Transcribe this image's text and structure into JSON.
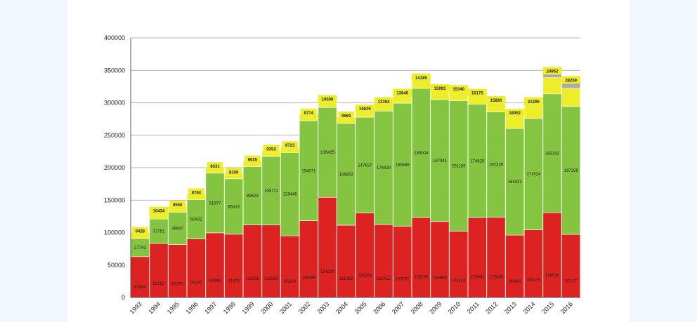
{
  "chart_data": {
    "type": "bar",
    "stacked": true,
    "title": "",
    "xlabel": "",
    "ylabel": "",
    "ylim": [
      0,
      400000
    ],
    "yticks": [
      0,
      50000,
      100000,
      150000,
      200000,
      250000,
      300000,
      350000,
      400000
    ],
    "ytick_labels": [
      "0",
      "50000",
      "100000",
      "150000",
      "200000",
      "250000",
      "300000",
      "350000",
      "400000"
    ],
    "grid": true,
    "legend": "none",
    "categories": [
      "1993",
      "1994",
      "1995",
      "1996",
      "1997",
      "1998",
      "1999",
      "2000",
      "2001",
      "2002",
      "2003",
      "2004",
      "2005",
      "2006",
      "2007",
      "2008",
      "2009",
      "2010",
      "2011",
      "2012",
      "2013",
      "2014",
      "2015",
      "2016"
    ],
    "colors": {
      "red": "#dd2222",
      "green": "#84c441",
      "yellow": "#eded2a",
      "gray": "#aaaaaa"
    },
    "series": [
      {
        "values": [
          62884,
          83052,
          81570,
          90142,
          99588,
          97475,
          111958,
          111650,
          95010,
          118289,
          154299,
          111362,
          130155,
          112455,
          109702,
          123196,
          116969,
          102162,
          123001,
          123486,
          96060,
          104275,
          130570,
          97107
        ],
        "labels": [
          "62884",
          "83052",
          "81570",
          "90142",
          "99588",
          "97475",
          "111958",
          "111650",
          "95010",
          "118289",
          "154299",
          "111362",
          "130155",
          "112455",
          "109702",
          "123196",
          "116969",
          "102162",
          "123001",
          "123486",
          "96060",
          "104275",
          "130570",
          "97107"
        ]
      },
      {
        "values": [
          27743,
          37751,
          49547,
          60492,
          91977,
          85413,
          89623,
          105711,
          128448,
          154071,
          138435,
          156863,
          147637,
          174819,
          189696,
          199004,
          187941,
          201183,
          174625,
          162339,
          164422,
          171524,
          183162,
          197159
        ],
        "labels": [
          "27743",
          "37751",
          "49547",
          "60492",
          "91977",
          "85413",
          "89623",
          "105711",
          "128448",
          "154071",
          "138435",
          "156863",
          "147637",
          "174819",
          "189696",
          "199004",
          "187941",
          "201183",
          "174625",
          "162339",
          "164422",
          "171524",
          "183162",
          "197159"
        ]
      },
      {
        "values": [
          9428,
          10434,
          9550,
          8784,
          8331,
          8106,
          8625,
          9353,
          8723,
          9774,
          10509,
          9669,
          10629,
          12394,
          13646,
          14185,
          15093,
          15340,
          15175,
          15826,
          18952,
          21399,
          24952,
          28259
        ],
        "labels": [
          "9428",
          "10434",
          "9550",
          "8784",
          "8331",
          "8106",
          "8625",
          "9353",
          "8723",
          "9774",
          "10509",
          "9669",
          "10629",
          "12394",
          "13646",
          "14185",
          "15093",
          "15340",
          "15175",
          "15826",
          "18952",
          "21399",
          "24952",
          "28259"
        ]
      },
      {
        "values": [
          0,
          0,
          0,
          0,
          0,
          0,
          0,
          0,
          0,
          0,
          0,
          0,
          0,
          0,
          0,
          0,
          0,
          0,
          0,
          0,
          2500,
          2500,
          8000,
          10000
        ]
      }
    ]
  }
}
